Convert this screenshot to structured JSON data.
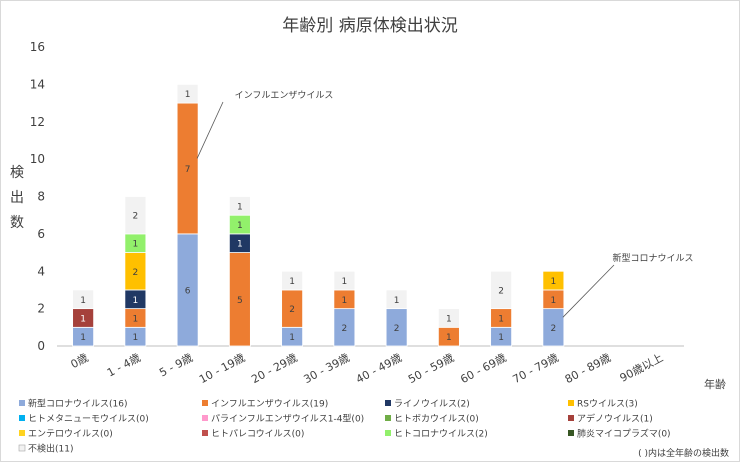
{
  "chart_data": {
    "type": "bar",
    "stacked": true,
    "title": "年齢別 病原体検出状況",
    "ylabel": "検出数",
    "xlabel": "年齢",
    "ylim": [
      0,
      16
    ],
    "yticks": [
      0,
      2,
      4,
      6,
      8,
      10,
      12,
      14,
      16
    ],
    "grid": false,
    "categories": [
      "0歳",
      "1 - 4歳",
      "5 - 9歳",
      "10 - 19歳",
      "20 - 29歳",
      "30 - 39歳",
      "40 - 49歳",
      "50 - 59歳",
      "60 - 69歳",
      "70 - 79歳",
      "80 - 89歳",
      "90歳以上"
    ],
    "series": [
      {
        "name": "新型コロナウイルス",
        "legend": "新型コロナウイルス(16)",
        "color": "#8eaadb",
        "values": [
          1,
          1,
          6,
          0,
          1,
          2,
          2,
          0,
          1,
          2,
          0,
          0
        ]
      },
      {
        "name": "インフルエンザウイルス",
        "legend": "インフルエンザウイルス(19)",
        "color": "#ed7d31",
        "values": [
          0,
          1,
          7,
          5,
          2,
          1,
          0,
          1,
          1,
          1,
          0,
          0
        ]
      },
      {
        "name": "ライノウイルス",
        "legend": "ライノウイルス(2)",
        "color": "#203864",
        "values": [
          0,
          1,
          0,
          1,
          0,
          0,
          0,
          0,
          0,
          0,
          0,
          0
        ]
      },
      {
        "name": "RSウイルス",
        "legend": "RSウイルス(3)",
        "color": "#ffc000",
        "values": [
          0,
          2,
          0,
          0,
          0,
          0,
          0,
          0,
          0,
          1,
          0,
          0
        ]
      },
      {
        "name": "ヒトメタニューモウイルス",
        "legend": "ヒトメタニューモウイルス(0)",
        "color": "#00b0f0",
        "values": [
          0,
          0,
          0,
          0,
          0,
          0,
          0,
          0,
          0,
          0,
          0,
          0
        ]
      },
      {
        "name": "パラインフルエンザウイルス1-4型",
        "legend": "パラインフルエンザウイルス1-4型(0)",
        "color": "#ff99cc",
        "values": [
          0,
          0,
          0,
          0,
          0,
          0,
          0,
          0,
          0,
          0,
          0,
          0
        ]
      },
      {
        "name": "ヒトボカウイルス",
        "legend": "ヒトボカウイルス(0)",
        "color": "#70ad47",
        "values": [
          0,
          0,
          0,
          0,
          0,
          0,
          0,
          0,
          0,
          0,
          0,
          0
        ]
      },
      {
        "name": "アデノウイルス",
        "legend": "アデノウイルス(1)",
        "color": "#a5413b",
        "values": [
          1,
          0,
          0,
          0,
          0,
          0,
          0,
          0,
          0,
          0,
          0,
          0
        ]
      },
      {
        "name": "エンテロウイルス",
        "legend": "エンテロウイルス(0)",
        "color": "#ffd320",
        "values": [
          0,
          0,
          0,
          0,
          0,
          0,
          0,
          0,
          0,
          0,
          0,
          0
        ]
      },
      {
        "name": "ヒトパレコウイルス",
        "legend": "ヒトパレコウイルス(0)",
        "color": "#c0504d",
        "values": [
          0,
          0,
          0,
          0,
          0,
          0,
          0,
          0,
          0,
          0,
          0,
          0
        ]
      },
      {
        "name": "ヒトコロナウイルス",
        "legend": "ヒトコロナウイルス(2)",
        "color": "#92f06b",
        "values": [
          0,
          1,
          0,
          1,
          0,
          0,
          0,
          0,
          0,
          0,
          0,
          0
        ]
      },
      {
        "name": "肺炎マイコプラズマ",
        "legend": "肺炎マイコプラズマ(0)",
        "color": "#375623",
        "values": [
          0,
          0,
          0,
          0,
          0,
          0,
          0,
          0,
          0,
          0,
          0,
          0
        ]
      },
      {
        "name": "不検出",
        "legend": "不検出(11)",
        "color": "#f2f2f2",
        "values": [
          1,
          2,
          1,
          1,
          1,
          1,
          1,
          1,
          2,
          0,
          0,
          0
        ]
      }
    ],
    "annotations": [
      {
        "text": "インフルエンザウイルス",
        "category": "5 - 9歳",
        "series": "インフルエンザウイルス"
      },
      {
        "text": "新型コロナウイルス",
        "category": "70 - 79歳",
        "series": "新型コロナウイルス"
      }
    ],
    "footnote": "( )内は全年齢の検出数",
    "legend_position": "bottom"
  }
}
